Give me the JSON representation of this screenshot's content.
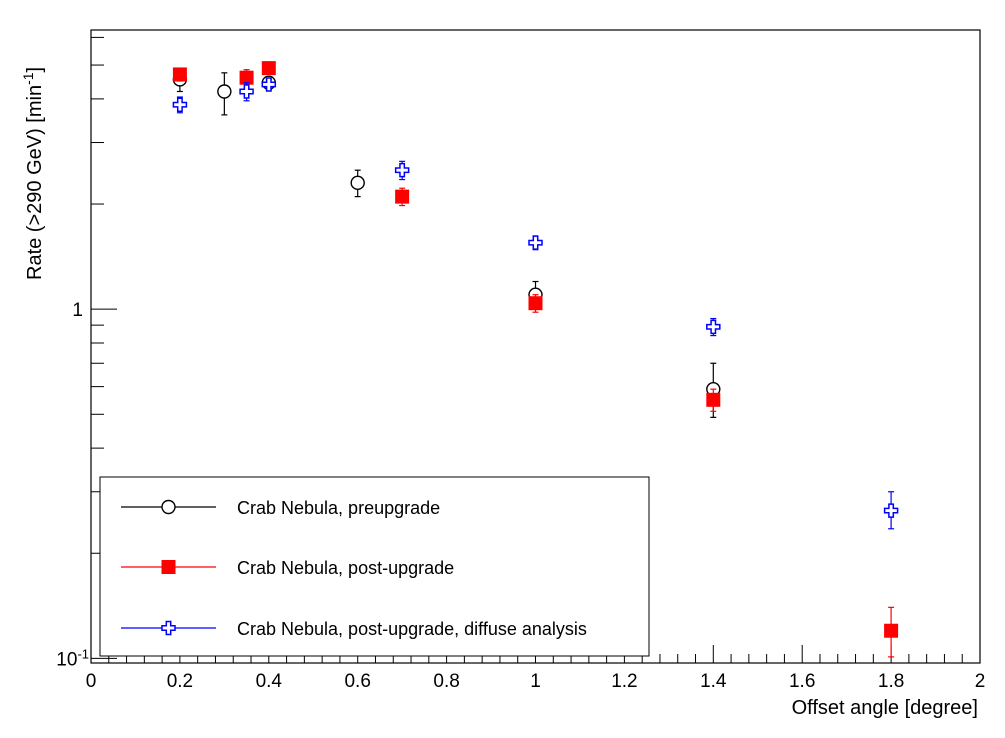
{
  "chart_data": {
    "type": "scatter",
    "xlabel": "Offset angle [degree]",
    "ylabel_main": "Rate (>290 GeV) [min",
    "ylabel_sup": "-1",
    "ylabel_close": "]",
    "xlim": [
      0,
      2
    ],
    "ylim": [
      0.097,
      6.3
    ],
    "log_y": true,
    "grid": false,
    "legend_position": "bottom-left",
    "x_ticks": [
      {
        "v": 0,
        "label": "0"
      },
      {
        "v": 0.2,
        "label": "0.2"
      },
      {
        "v": 0.4,
        "label": "0.4"
      },
      {
        "v": 0.6,
        "label": "0.6"
      },
      {
        "v": 0.8,
        "label": "0.8"
      },
      {
        "v": 1.0,
        "label": "1"
      },
      {
        "v": 1.2,
        "label": "1.2"
      },
      {
        "v": 1.4,
        "label": "1.4"
      },
      {
        "v": 1.6,
        "label": "1.6"
      },
      {
        "v": 1.8,
        "label": "1.8"
      },
      {
        "v": 2.0,
        "label": "2"
      }
    ],
    "y_ticks": [
      {
        "v": 0.1,
        "base": "10",
        "sup": "-1"
      },
      {
        "v": 1,
        "base": "1",
        "sup": ""
      }
    ],
    "series": [
      {
        "name": "Crab Nebula, preupgrade",
        "marker": "open-circle",
        "color": "#000000",
        "points": [
          {
            "x": 0.2,
            "y": 4.55,
            "lo": 4.2,
            "hi": 4.9
          },
          {
            "x": 0.3,
            "y": 4.2,
            "lo": 3.6,
            "hi": 4.75
          },
          {
            "x": 0.4,
            "y": 4.45,
            "lo": 4.3,
            "hi": 4.6
          },
          {
            "x": 0.6,
            "y": 2.3,
            "lo": 2.1,
            "hi": 2.5
          },
          {
            "x": 1.0,
            "y": 1.1,
            "lo": 1.02,
            "hi": 1.2
          },
          {
            "x": 1.4,
            "y": 0.59,
            "lo": 0.49,
            "hi": 0.7
          }
        ]
      },
      {
        "name": "Crab Nebula, post-upgrade",
        "marker": "filled-square",
        "color": "#ff0000",
        "points": [
          {
            "x": 0.2,
            "y": 4.7,
            "lo": 4.5,
            "hi": 4.9
          },
          {
            "x": 0.35,
            "y": 4.6,
            "lo": 4.3,
            "hi": 4.85
          },
          {
            "x": 0.4,
            "y": 4.9,
            "lo": 4.75,
            "hi": 5.05
          },
          {
            "x": 0.7,
            "y": 2.1,
            "lo": 1.98,
            "hi": 2.22
          },
          {
            "x": 1.0,
            "y": 1.04,
            "lo": 0.98,
            "hi": 1.1
          },
          {
            "x": 1.4,
            "y": 0.55,
            "lo": 0.51,
            "hi": 0.59
          },
          {
            "x": 1.8,
            "y": 0.12,
            "lo": 0.101,
            "hi": 0.14
          }
        ]
      },
      {
        "name": "Crab Nebula, post-upgrade, diffuse analysis",
        "marker": "open-cross",
        "color": "#0000ff",
        "points": [
          {
            "x": 0.2,
            "y": 3.85,
            "lo": 3.65,
            "hi": 4.05
          },
          {
            "x": 0.35,
            "y": 4.2,
            "lo": 3.95,
            "hi": 4.45
          },
          {
            "x": 0.4,
            "y": 4.4,
            "lo": 4.25,
            "hi": 4.55
          },
          {
            "x": 0.7,
            "y": 2.5,
            "lo": 2.35,
            "hi": 2.65
          },
          {
            "x": 1.0,
            "y": 1.55,
            "lo": 1.48,
            "hi": 1.62
          },
          {
            "x": 1.4,
            "y": 0.89,
            "lo": 0.84,
            "hi": 0.94
          },
          {
            "x": 1.8,
            "y": 0.265,
            "lo": 0.235,
            "hi": 0.3
          }
        ]
      }
    ]
  }
}
